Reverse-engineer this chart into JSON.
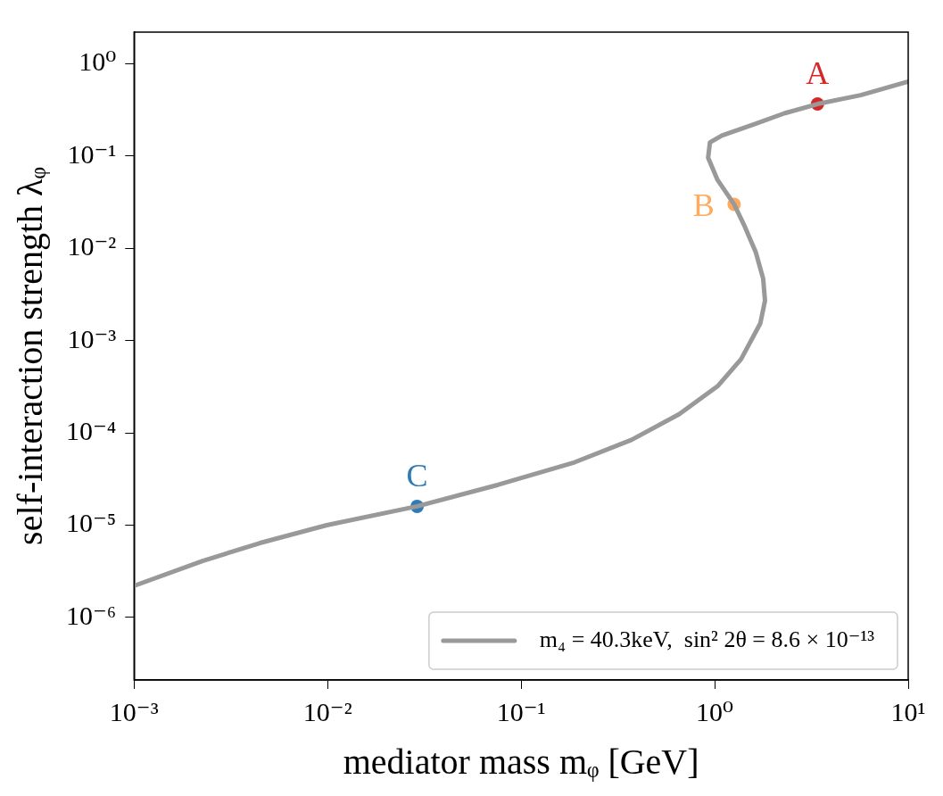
{
  "chart_data": {
    "type": "line",
    "xlabel": "mediator mass mᵩ [GeV]",
    "ylabel": "self-interaction strength λᵩ",
    "log": "xy",
    "grid": false,
    "legend": "bottom right",
    "marker": "none",
    "line_style": "solid",
    "xlim": [
      0.001,
      10
    ],
    "xticks": [
      {
        "value": 0.001,
        "label": "10⁻³"
      },
      {
        "value": 0.01,
        "label": "10⁻²"
      },
      {
        "value": 0.1,
        "label": "10⁻¹"
      },
      {
        "value": 1,
        "label": "10⁰"
      },
      {
        "value": 10,
        "label": "10¹"
      }
    ],
    "ylim": [
      2.1e-07,
      2.2
    ],
    "yticks": [
      {
        "value": 1e-06,
        "label": "10⁻⁶"
      },
      {
        "value": 1e-05,
        "label": "10⁻⁵"
      },
      {
        "value": 0.0001,
        "label": "10⁻⁴"
      },
      {
        "value": 0.001,
        "label": "10⁻³"
      },
      {
        "value": 0.01,
        "label": "10⁻²"
      },
      {
        "value": 0.1,
        "label": "10⁻¹"
      },
      {
        "value": 1,
        "label": "10⁰"
      }
    ],
    "series": [
      {
        "type": "line",
        "name": "m₄ = 40.3keV,  sin² 2θ = 8.6 × 10⁻¹³",
        "color": "#999999",
        "x": [
          0.001,
          0.00226,
          0.00447,
          0.0099,
          0.029,
          0.0762,
          0.189,
          0.372,
          0.657,
          1.035,
          1.37,
          1.72,
          1.82,
          1.78,
          1.63,
          1.42,
          1.26,
          1.035,
          0.925,
          0.945,
          1.09,
          1.63,
          2.29,
          3.4,
          5.68,
          10
        ],
        "values": [
          2.2e-06,
          4.1e-06,
          6.4e-06,
          1e-05,
          1.6e-05,
          2.74e-05,
          4.8e-05,
          8.4e-05,
          0.00016,
          0.00032,
          0.00063,
          0.00153,
          0.0027,
          0.0047,
          0.0091,
          0.0178,
          0.03,
          0.055,
          0.096,
          0.14,
          0.167,
          0.224,
          0.29,
          0.366,
          0.457,
          0.64
        ]
      },
      {
        "type": "scatter",
        "marker": "circle",
        "x": [
          3.4,
          1.26,
          0.029
        ],
        "values": [
          0.366,
          0.03,
          1.6e-05
        ],
        "colors": [
          "#d62728",
          "#ffaa5e",
          "#2f7bb6"
        ]
      }
    ],
    "annotations": [
      {
        "text": "A",
        "x": 3.4,
        "y": 0.366
      },
      {
        "text": "B",
        "x": 1.26,
        "y": 0.03
      },
      {
        "text": "C",
        "x": 0.029,
        "y": 1.6e-05
      }
    ]
  }
}
